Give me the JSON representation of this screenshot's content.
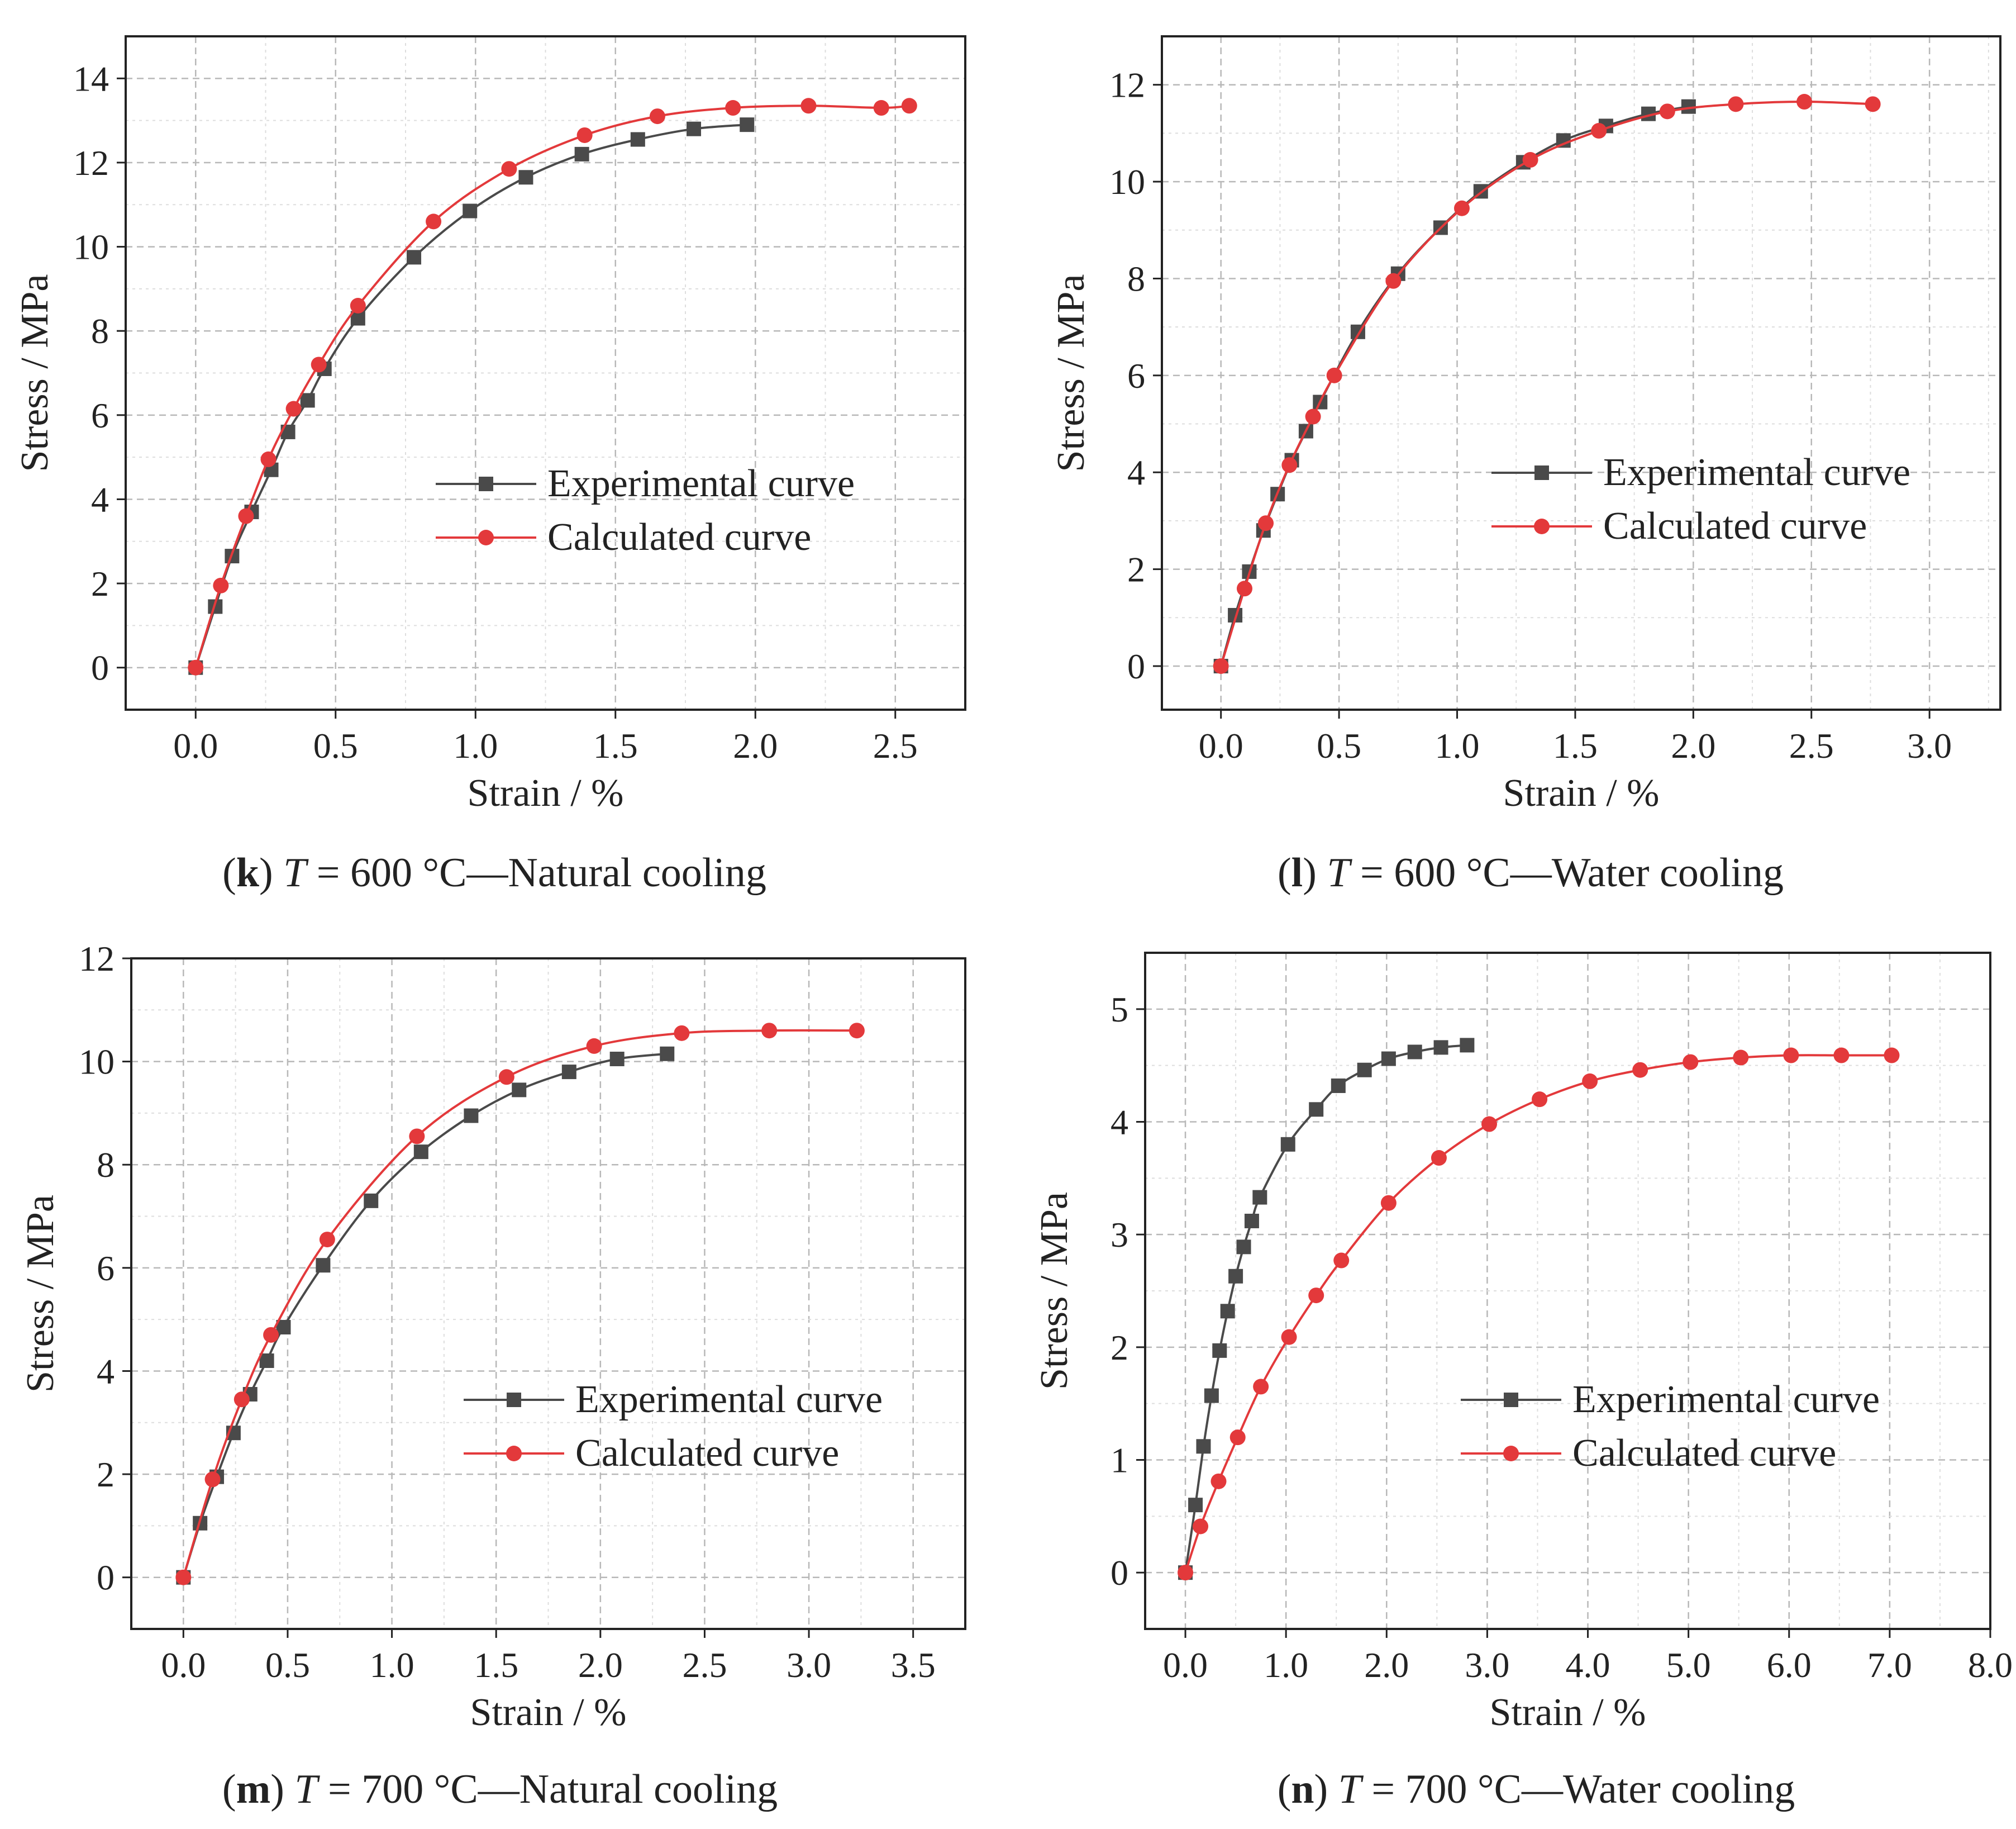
{
  "figure": {
    "colors": {
      "experimental": "#4a4a4a",
      "calculated": "#e3393b",
      "axis": "#222222",
      "grid_major": "#b8b8b8",
      "grid_minor": "#dddddd",
      "text": "#222222"
    }
  },
  "chart_data": [
    {
      "id": "k",
      "type": "line",
      "caption": {
        "letter": "k",
        "t_symbol": "T",
        "text": " = 600 °C—Natural cooling"
      },
      "xlabel": "Strain / %",
      "ylabel": "Stress / MPa",
      "xlim": [
        -0.25,
        2.75
      ],
      "ylim": [
        -1,
        15
      ],
      "xticks": [
        0.0,
        0.5,
        1.0,
        1.5,
        2.0,
        2.5
      ],
      "xtick_labels": [
        "0.0",
        "0.5",
        "1.0",
        "1.5",
        "2.0",
        "2.5"
      ],
      "yticks": [
        0,
        2,
        4,
        6,
        8,
        10,
        12,
        14
      ],
      "ytick_labels": [
        "0",
        "2",
        "4",
        "6",
        "8",
        "10",
        "12",
        "14"
      ],
      "legend": {
        "position": "center-right",
        "entries": [
          "Experimental curve",
          "Calculated curve"
        ]
      },
      "series": [
        {
          "name": "Experimental curve",
          "marker": "square",
          "x": [
            0.0,
            0.07,
            0.13,
            0.2,
            0.27,
            0.33,
            0.4,
            0.46,
            0.58,
            0.78,
            0.98,
            1.18,
            1.38,
            1.58,
            1.78,
            1.97
          ],
          "y": [
            0.0,
            1.45,
            2.65,
            3.7,
            4.7,
            5.6,
            6.35,
            7.1,
            8.3,
            9.75,
            10.85,
            11.65,
            12.2,
            12.55,
            12.8,
            12.9
          ]
        },
        {
          "name": "Calculated curve",
          "marker": "circle",
          "x": [
            0.0,
            0.09,
            0.18,
            0.26,
            0.35,
            0.44,
            0.58,
            0.85,
            1.12,
            1.39,
            1.65,
            1.92,
            2.19,
            2.45,
            2.55
          ],
          "y": [
            0.0,
            1.95,
            3.6,
            4.95,
            6.15,
            7.2,
            8.6,
            10.6,
            11.85,
            12.65,
            13.1,
            13.3,
            13.35,
            13.3,
            13.35
          ]
        }
      ]
    },
    {
      "id": "l",
      "type": "line",
      "caption": {
        "letter": "l",
        "t_symbol": "T",
        "text": " = 600 °C—Water cooling"
      },
      "xlabel": "Strain / %",
      "ylabel": "Stress / MPa",
      "xlim": [
        -0.25,
        3.3
      ],
      "ylim": [
        -0.9,
        13
      ],
      "xticks": [
        0.0,
        0.5,
        1.0,
        1.5,
        2.0,
        2.5,
        3.0
      ],
      "xtick_labels": [
        "0.0",
        "0.5",
        "1.0",
        "1.5",
        "2.0",
        "2.5",
        "3.0"
      ],
      "yticks": [
        0,
        2,
        4,
        6,
        8,
        10,
        12
      ],
      "ytick_labels": [
        "0",
        "2",
        "4",
        "6",
        "8",
        "10",
        "12"
      ],
      "legend": {
        "position": "center-right",
        "entries": [
          "Experimental curve",
          "Calculated curve"
        ]
      },
      "series": [
        {
          "name": "Experimental curve",
          "marker": "square",
          "x": [
            0.0,
            0.06,
            0.12,
            0.18,
            0.24,
            0.3,
            0.36,
            0.42,
            0.58,
            0.75,
            0.93,
            1.1,
            1.28,
            1.45,
            1.63,
            1.81,
            1.98
          ],
          "y": [
            0.0,
            1.05,
            1.95,
            2.8,
            3.55,
            4.25,
            4.85,
            5.45,
            6.9,
            8.1,
            9.05,
            9.8,
            10.4,
            10.85,
            11.15,
            11.4,
            11.55
          ]
        },
        {
          "name": "Calculated curve",
          "marker": "circle",
          "x": [
            0.0,
            0.1,
            0.19,
            0.29,
            0.39,
            0.48,
            0.73,
            1.02,
            1.31,
            1.6,
            1.89,
            2.18,
            2.47,
            2.76
          ],
          "y": [
            0.0,
            1.6,
            2.95,
            4.15,
            5.15,
            6.0,
            7.95,
            9.45,
            10.45,
            11.05,
            11.45,
            11.6,
            11.65,
            11.6
          ]
        }
      ]
    },
    {
      "id": "m",
      "type": "line",
      "caption": {
        "letter": "m",
        "t_symbol": "T",
        "text": " = 700 °C—Natural cooling"
      },
      "xlabel": "Strain / %",
      "ylabel": "Stress / MPa",
      "xlim": [
        -0.25,
        3.75
      ],
      "ylim": [
        -1,
        12
      ],
      "xticks": [
        0.0,
        0.5,
        1.0,
        1.5,
        2.0,
        2.5,
        3.0,
        3.5
      ],
      "xtick_labels": [
        "0.0",
        "0.5",
        "1.0",
        "1.5",
        "2.0",
        "2.5",
        "3.0",
        "3.5"
      ],
      "yticks": [
        0,
        2,
        4,
        6,
        8,
        10,
        12
      ],
      "ytick_labels": [
        "0",
        "2",
        "4",
        "6",
        "8",
        "10",
        "12"
      ],
      "legend": {
        "position": "center-right",
        "entries": [
          "Experimental curve",
          "Calculated curve"
        ]
      },
      "series": [
        {
          "name": "Experimental curve",
          "marker": "square",
          "x": [
            0.0,
            0.08,
            0.16,
            0.24,
            0.32,
            0.4,
            0.48,
            0.67,
            0.9,
            1.14,
            1.38,
            1.61,
            1.85,
            2.08,
            2.32
          ],
          "y": [
            0.0,
            1.05,
            1.95,
            2.8,
            3.55,
            4.2,
            4.85,
            6.05,
            7.3,
            8.25,
            8.95,
            9.45,
            9.8,
            10.05,
            10.15
          ]
        },
        {
          "name": "Calculated curve",
          "marker": "circle",
          "x": [
            0.0,
            0.14,
            0.28,
            0.42,
            0.69,
            1.12,
            1.55,
            1.97,
            2.39,
            2.81,
            3.23
          ],
          "y": [
            0.0,
            1.9,
            3.45,
            4.7,
            6.55,
            8.55,
            9.7,
            10.3,
            10.55,
            10.6,
            10.6
          ]
        }
      ]
    },
    {
      "id": "n",
      "type": "line",
      "caption": {
        "letter": "n",
        "t_symbol": "T",
        "text": " = 700 °C—Water cooling"
      },
      "xlabel": "Strain / %",
      "ylabel": "Stress / MPa",
      "xlim": [
        -0.4,
        8.0
      ],
      "ylim": [
        -0.5,
        5.5
      ],
      "xticks": [
        0.0,
        1.0,
        2.0,
        3.0,
        4.0,
        5.0,
        6.0,
        7.0,
        8.0
      ],
      "xtick_labels": [
        "0.0",
        "1.0",
        "2.0",
        "3.0",
        "4.0",
        "5.0",
        "6.0",
        "7.0",
        "8.0"
      ],
      "yticks": [
        0,
        1,
        2,
        3,
        4,
        5
      ],
      "ytick_labels": [
        "0",
        "1",
        "2",
        "3",
        "4",
        "5"
      ],
      "legend": {
        "position": "center-right",
        "entries": [
          "Experimental curve",
          "Calculated curve"
        ]
      },
      "series": [
        {
          "name": "Experimental curve",
          "marker": "square",
          "x": [
            0.0,
            0.1,
            0.18,
            0.26,
            0.34,
            0.42,
            0.5,
            0.58,
            0.66,
            0.74,
            1.02,
            1.3,
            1.52,
            1.78,
            2.02,
            2.28,
            2.54,
            2.8
          ],
          "y": [
            0.0,
            0.6,
            1.12,
            1.57,
            1.97,
            2.32,
            2.63,
            2.89,
            3.12,
            3.33,
            3.8,
            4.11,
            4.32,
            4.46,
            4.56,
            4.62,
            4.66,
            4.68
          ]
        },
        {
          "name": "Calculated curve",
          "marker": "circle",
          "x": [
            0.0,
            0.15,
            0.33,
            0.52,
            0.75,
            1.03,
            1.3,
            1.55,
            2.02,
            2.52,
            3.02,
            3.52,
            4.02,
            4.52,
            5.02,
            5.52,
            6.02,
            6.52,
            7.02
          ],
          "y": [
            0.0,
            0.41,
            0.81,
            1.2,
            1.65,
            2.09,
            2.46,
            2.77,
            3.28,
            3.68,
            3.98,
            4.2,
            4.36,
            4.46,
            4.53,
            4.57,
            4.59,
            4.59,
            4.59
          ]
        }
      ]
    }
  ]
}
